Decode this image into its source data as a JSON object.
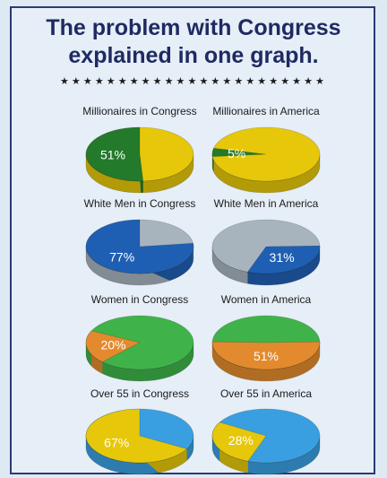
{
  "title_line1": "The problem with Congress",
  "title_line2": "explained in one graph.",
  "stars": "★★★★★★★★★★★★★★★★★★★★★★★",
  "colors": {
    "yellow": "#e6c70a",
    "dark_green": "#237a2b",
    "blue": "#1f5fb3",
    "gray": "#a7b4be",
    "green": "#3fb34a",
    "orange": "#e38a2e",
    "light_blue": "#3a9fe0"
  },
  "chart_data": [
    {
      "type": "pie",
      "title": "Millionaires in Congress",
      "label": "51%",
      "highlight_value": 51,
      "highlight_color": "dark_green",
      "rest_color": "yellow"
    },
    {
      "type": "pie",
      "title": "Millionaires in America",
      "label": "5%",
      "highlight_value": 5,
      "highlight_color": "dark_green",
      "rest_color": "yellow"
    },
    {
      "type": "pie",
      "title": "White Men in Congress",
      "label": "77%",
      "highlight_value": 77,
      "highlight_color": "blue",
      "rest_color": "gray"
    },
    {
      "type": "pie",
      "title": "White Men in America",
      "label": "31%",
      "highlight_value": 31,
      "highlight_color": "blue",
      "rest_color": "gray"
    },
    {
      "type": "pie",
      "title": "Women in Congress",
      "label": "20%",
      "highlight_value": 20,
      "highlight_color": "orange",
      "rest_color": "green"
    },
    {
      "type": "pie",
      "title": "Women in America",
      "label": "51%",
      "highlight_value": 51,
      "highlight_color": "orange",
      "rest_color": "green"
    },
    {
      "type": "pie",
      "title": "Over 55 in Congress",
      "label": "67%",
      "highlight_value": 67,
      "highlight_color": "yellow",
      "rest_color": "light_blue"
    },
    {
      "type": "pie",
      "title": "Over 55 in America",
      "label": "28%",
      "highlight_value": 28,
      "highlight_color": "yellow",
      "rest_color": "light_blue"
    }
  ]
}
